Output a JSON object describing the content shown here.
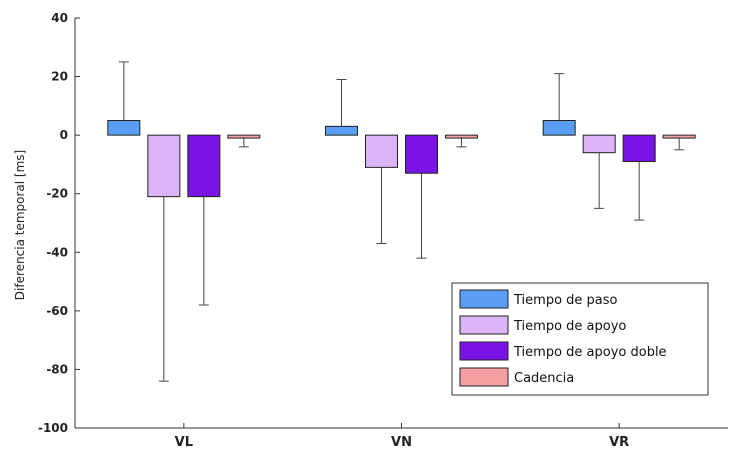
{
  "chart_data": {
    "type": "bar",
    "title": "",
    "xlabel": "",
    "ylabel": "Diferencia temporal [ms]",
    "ylim": [
      -100,
      40
    ],
    "yticks": [
      40,
      20,
      0,
      -20,
      -40,
      -60,
      -80,
      -100
    ],
    "categories": [
      "VL",
      "VN",
      "VR"
    ],
    "grid": false,
    "legend_position": "bottom-right",
    "error_bars": true,
    "series": [
      {
        "name": "Tiempo de paso",
        "color": "#5a9ef5",
        "values": [
          5,
          3,
          5
        ],
        "error_ends": [
          25,
          19,
          21
        ]
      },
      {
        "name": "Tiempo de apoyo",
        "color": "#dcb4f8",
        "values": [
          -21,
          -11,
          -6
        ],
        "error_ends": [
          -84,
          -37,
          -25
        ]
      },
      {
        "name": "Tiempo de apoyo doble",
        "color": "#7a14e6",
        "values": [
          -21,
          -13,
          -9
        ],
        "error_ends": [
          -58,
          -42,
          -29
        ]
      },
      {
        "name": "Cadencia",
        "color": "#f5a0a0",
        "values": [
          -1,
          -1,
          -1
        ],
        "error_ends": [
          -4,
          -4,
          -5
        ]
      }
    ]
  }
}
